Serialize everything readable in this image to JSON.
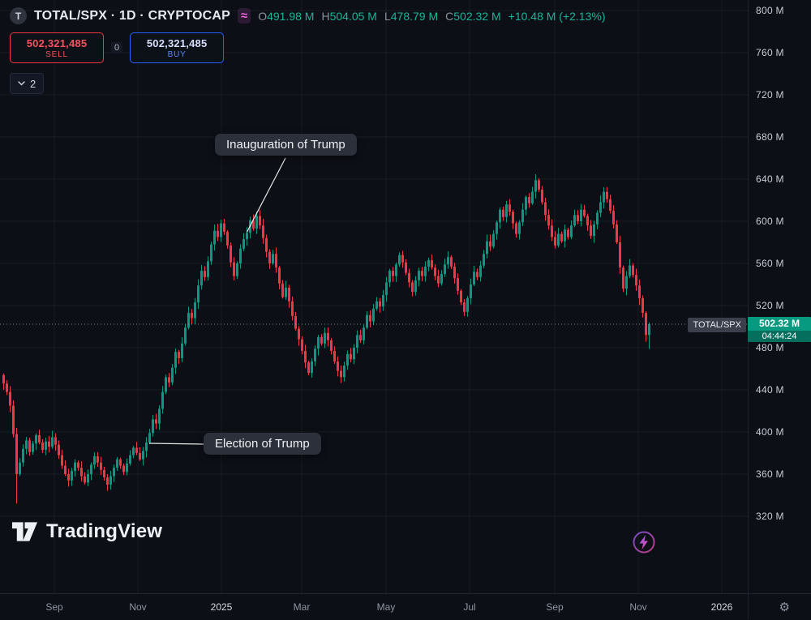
{
  "header": {
    "symbol_badge": "T",
    "symbol_title": "TOTAL/SPX · 1D · CRYPTOCAP",
    "spread_icon": "≈",
    "ohlc": {
      "o_label": "O",
      "o": "491.98 M",
      "h_label": "H",
      "h": "504.05 M",
      "l_label": "L",
      "l": "478.79 M",
      "c_label": "C",
      "c": "502.32 M",
      "change": "+10.48 M (+2.13%)"
    }
  },
  "trade_panel": {
    "sell": {
      "value": "502,321,485",
      "label": "SELL"
    },
    "spread": "0",
    "buy": {
      "value": "502,321,485",
      "label": "BUY"
    }
  },
  "collapse": {
    "count": "2"
  },
  "annotations": {
    "inauguration": "Inauguration of Trump",
    "election": "Election of Trump"
  },
  "price_label": {
    "symbol": "TOTAL/SPX",
    "price": "502.32 M",
    "countdown": "04:44:24"
  },
  "watermark": {
    "text": "TradingView"
  },
  "icons": {
    "settings": "⚙"
  },
  "axes": {
    "y_labels": [
      "800 M",
      "760 M",
      "720 M",
      "680 M",
      "640 M",
      "600 M",
      "560 M",
      "520 M",
      "480 M",
      "440 M",
      "400 M",
      "360 M",
      "320 M"
    ],
    "x_labels": [
      "Sep",
      "Nov",
      "2025",
      "Mar",
      "May",
      "Jul",
      "Sep",
      "Nov",
      "2026"
    ]
  },
  "colors": {
    "up": "#089981",
    "down": "#f23645",
    "sell_accent": "#f23645",
    "buy_accent": "#2962ff",
    "price_tag_bg": "#089981",
    "legend_value": "#19b699",
    "background": "#0c0f16"
  },
  "chart_data": {
    "type": "candlestick",
    "symbol": "TOTAL/SPX",
    "interval": "1D",
    "exchange": "CRYPTOCAP",
    "unit": "M",
    "title": "TOTAL/SPX · 1D · CRYPTOCAP",
    "y_axis": {
      "min": 320,
      "max": 800,
      "step": 40
    },
    "x_axis_months": [
      "Sep",
      "Nov",
      "2025",
      "Mar",
      "May",
      "Jul",
      "Sep",
      "Nov",
      "2026"
    ],
    "current_price": 502.32,
    "countdown": "04:44:24",
    "last_candle": {
      "open": 491.98,
      "high": 504.05,
      "low": 478.79,
      "close": 502.32,
      "change": 10.48,
      "change_pct": 2.13
    },
    "special": {
      "crash_index": 4,
      "crash_low": 332
    },
    "events": [
      {
        "name": "election",
        "label": "Election of Trump",
        "index": 44
      },
      {
        "name": "inauguration",
        "label": "Inauguration of Trump",
        "index": 75
      }
    ],
    "closes": [
      446,
      438,
      425,
      398,
      360,
      371,
      384,
      392,
      381,
      389,
      397,
      390,
      383,
      391,
      386,
      395,
      388,
      378,
      368,
      360,
      354,
      363,
      371,
      366,
      358,
      352,
      360,
      369,
      377,
      371,
      364,
      357,
      350,
      358,
      366,
      374,
      368,
      362,
      370,
      378,
      385,
      380,
      374,
      382,
      390,
      399,
      412,
      408,
      422,
      438,
      452,
      447,
      461,
      476,
      470,
      484,
      499,
      513,
      508,
      523,
      539,
      553,
      547,
      562,
      578,
      591,
      585,
      598,
      590,
      577,
      561,
      548,
      560,
      574,
      583,
      589,
      601,
      593,
      605,
      596,
      584,
      571,
      560,
      569,
      556,
      541,
      528,
      537,
      524,
      510,
      498,
      488,
      477,
      466,
      456,
      467,
      479,
      490,
      484,
      494,
      487,
      477,
      467,
      458,
      452,
      463,
      474,
      469,
      480,
      492,
      487,
      499,
      511,
      505,
      517,
      524,
      519,
      530,
      542,
      553,
      548,
      559,
      568,
      561,
      551,
      542,
      533,
      544,
      553,
      548,
      557,
      563,
      556,
      548,
      541,
      550,
      559,
      566,
      557,
      546,
      534,
      523,
      514,
      527,
      540,
      552,
      547,
      558,
      569,
      581,
      576,
      588,
      599,
      611,
      604,
      616,
      609,
      598,
      588,
      599,
      611,
      623,
      617,
      628,
      639,
      630,
      618,
      606,
      596,
      585,
      577,
      588,
      581,
      592,
      585,
      596,
      606,
      600,
      611,
      605,
      596,
      586,
      597,
      608,
      618,
      628,
      621,
      610,
      597,
      580,
      556,
      536,
      548,
      558,
      549,
      539,
      527,
      513,
      492,
      502.32
    ]
  }
}
